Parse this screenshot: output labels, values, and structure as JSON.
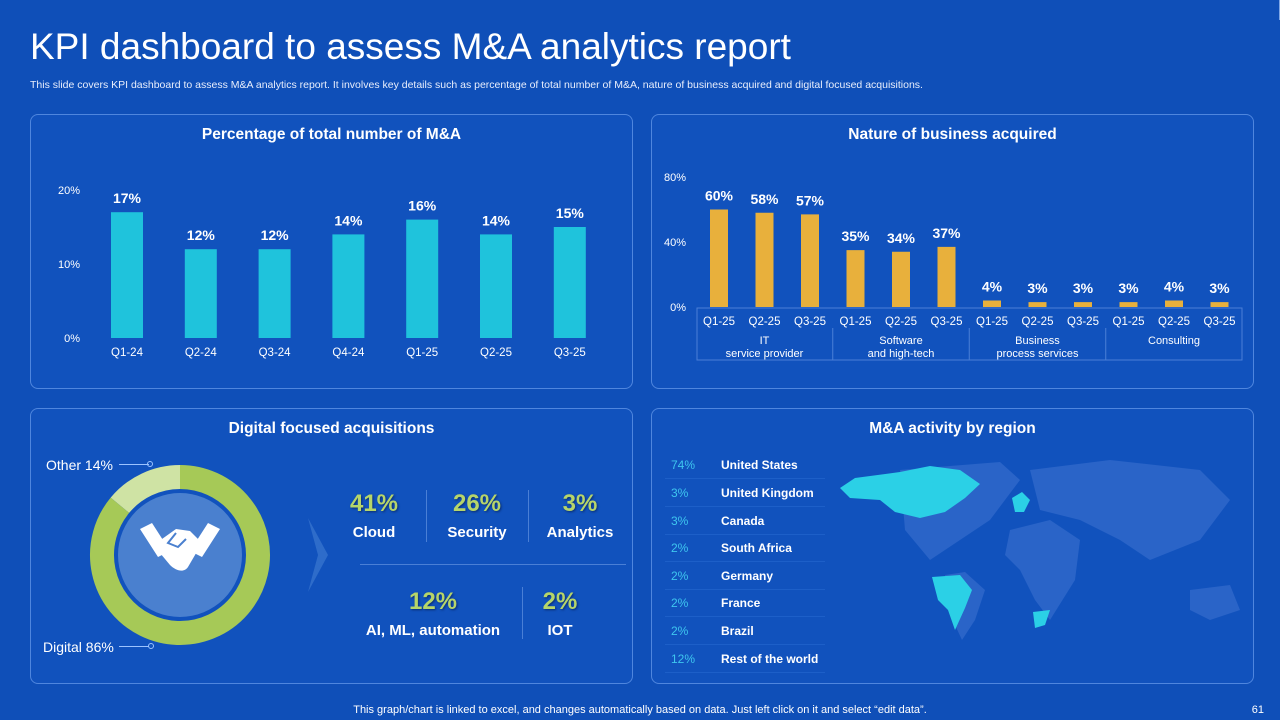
{
  "header": {
    "title": "KPI dashboard to assess M&A analytics report",
    "subtitle": "This slide covers KPI dashboard to assess M&A analytics report. It involves key details such as percentage of total number of M&A, nature of business acquired and digital focused acquisitions."
  },
  "colors": {
    "background": "#0f4fb8",
    "bar_cyan": "#1fc3dc",
    "bar_gold": "#e8b03c",
    "donut_green": "#a6c957",
    "donut_light": "#cfe3a4",
    "map_highlight": "#2bd0e6",
    "stat_green": "#b6d56a"
  },
  "chart_data": [
    {
      "type": "bar",
      "title": "Percentage of total number of M&A",
      "categories": [
        "Q1-24",
        "Q2-24",
        "Q3-24",
        "Q4-24",
        "Q1-25",
        "Q2-25",
        "Q3-25"
      ],
      "values": [
        17,
        12,
        12,
        14,
        16,
        14,
        15
      ],
      "data_labels": [
        "17%",
        "12%",
        "12%",
        "14%",
        "16%",
        "14%",
        "15%"
      ],
      "ylim": [
        0,
        20
      ],
      "yticks": [
        "0%",
        "10%",
        "20%"
      ],
      "grid": false
    },
    {
      "type": "bar",
      "title": "Nature of business acquired",
      "categories": [
        "Q1-25",
        "Q2-25",
        "Q3-25",
        "Q1-25",
        "Q2-25",
        "Q3-25",
        "Q1-25",
        "Q2-25",
        "Q3-25",
        "Q1-25",
        "Q2-25",
        "Q3-25"
      ],
      "groups": [
        {
          "label_line1": "IT",
          "label_line2": "service provider"
        },
        {
          "label_line1": "Software",
          "label_line2": "and high-tech"
        },
        {
          "label_line1": "Business",
          "label_line2": "process services"
        },
        {
          "label_line1": "Consulting",
          "label_line2": ""
        }
      ],
      "values": [
        60,
        58,
        57,
        35,
        34,
        37,
        4,
        3,
        3,
        3,
        4,
        3
      ],
      "data_labels": [
        "60%",
        "58%",
        "57%",
        "35%",
        "34%",
        "37%",
        "4%",
        "3%",
        "3%",
        "3%",
        "4%",
        "3%"
      ],
      "ylim": [
        0,
        80
      ],
      "yticks": [
        "0%",
        "40%",
        "80%"
      ],
      "grid": false
    },
    {
      "type": "pie",
      "title": "Digital focused acquisitions",
      "slices": [
        {
          "label": "Digital 86%",
          "value": 86
        },
        {
          "label": "Other 14%",
          "value": 14
        }
      ]
    }
  ],
  "digital": {
    "icon": "handshake-icon",
    "stats": [
      {
        "value": "41%",
        "label": "Cloud"
      },
      {
        "value": "26%",
        "label": "Security"
      },
      {
        "value": "3%",
        "label": "Analytics"
      },
      {
        "value": "12%",
        "label": "AI, ML, automation"
      },
      {
        "value": "2%",
        "label": "IOT"
      }
    ]
  },
  "region": {
    "title": "M&A activity by region",
    "items": [
      {
        "pct": "74%",
        "name": "United States"
      },
      {
        "pct": "3%",
        "name": "United Kingdom"
      },
      {
        "pct": "3%",
        "name": "Canada"
      },
      {
        "pct": "2%",
        "name": "South Africa"
      },
      {
        "pct": "2%",
        "name": "Germany"
      },
      {
        "pct": "2%",
        "name": "France"
      },
      {
        "pct": "2%",
        "name": "Brazil"
      },
      {
        "pct": "12%",
        "name": "Rest of the world"
      }
    ]
  },
  "footer": {
    "note": "This graph/chart is linked to excel, and changes automatically based on data. Just left click on it and select “edit data”.",
    "page": "61"
  }
}
